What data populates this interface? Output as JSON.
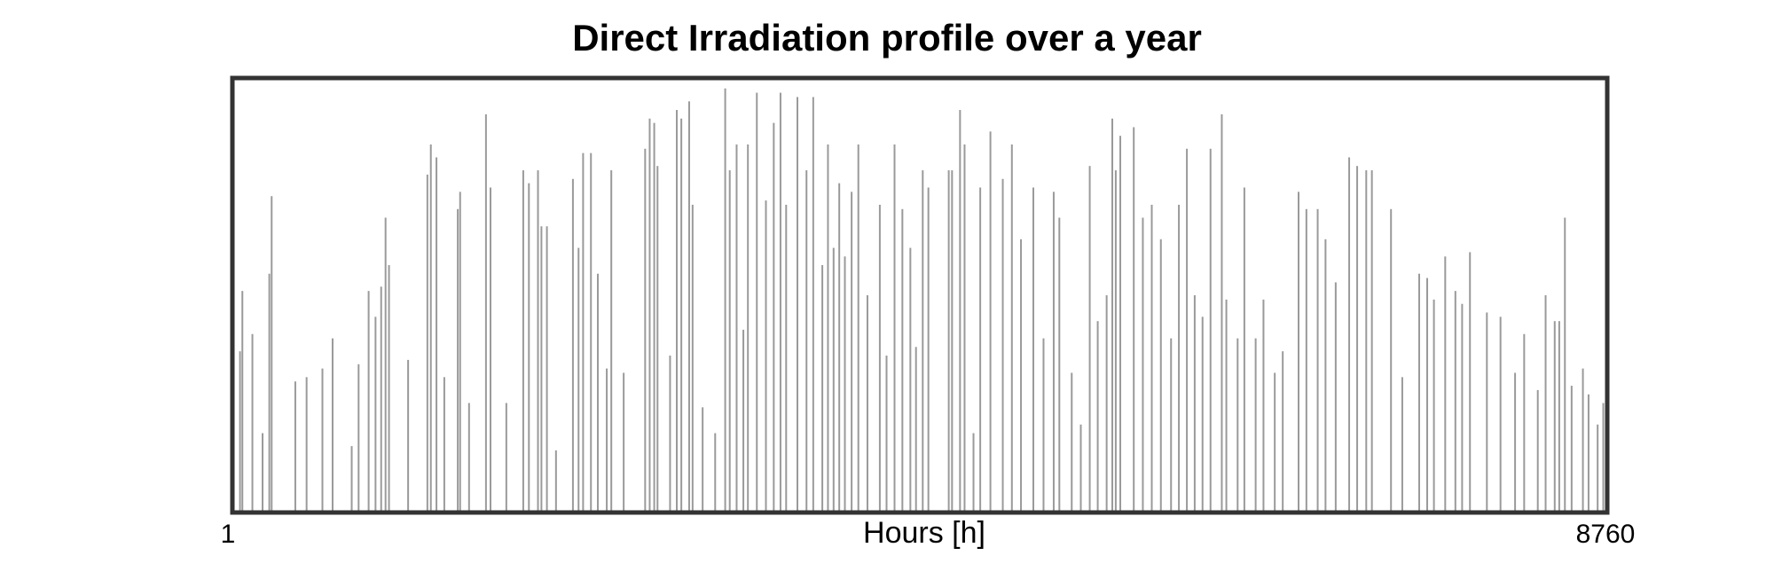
{
  "chart_data": {
    "type": "bar",
    "title": "Direct Irradiation profile over a year",
    "xlabel": "Hours [h]",
    "x": [
      44,
      59,
      123,
      188,
      231,
      246,
      397,
      469,
      570,
      635,
      757,
      801,
      865,
      909,
      945,
      973,
      995,
      1117,
      1240,
      1262,
      1298,
      1348,
      1434,
      1449,
      1506,
      1614,
      1643,
      1744,
      1852,
      1888,
      1946,
      1968,
      2003,
      2061,
      2169,
      2205,
      2234,
      2284,
      2328,
      2385,
      2414,
      2493,
      2630,
      2659,
      2688,
      2709,
      2789,
      2832,
      2861,
      2911,
      2933,
      2997,
      3077,
      3141,
      3170,
      3214,
      3257,
      3286,
      3343,
      3401,
      3451,
      3494,
      3530,
      3602,
      3660,
      3703,
      3761,
      3797,
      3833,
      3869,
      3905,
      3948,
      3991,
      4049,
      4128,
      4171,
      4222,
      4272,
      4323,
      4359,
      4402,
      4438,
      4568,
      4589,
      4640,
      4669,
      4726,
      4769,
      4834,
      4913,
      4971,
      5029,
      5108,
      5173,
      5238,
      5274,
      5353,
      5411,
      5468,
      5519,
      5576,
      5612,
      5634,
      5663,
      5749,
      5807,
      5864,
      5922,
      5987,
      6037,
      6088,
      6138,
      6188,
      6239,
      6311,
      6340,
      6412,
      6455,
      6527,
      6577,
      6649,
      6700,
      6801,
      6851,
      6923,
      6973,
      7038,
      7124,
      7175,
      7233,
      7269,
      7391,
      7463,
      7571,
      7622,
      7665,
      7737,
      7802,
      7845,
      7895,
      8003,
      8090,
      8183,
      8241,
      8328,
      8378,
      8436,
      8465,
      8501,
      8544,
      8616,
      8652,
      8710,
      8746
    ],
    "values": [
      37,
      51,
      41,
      18,
      55,
      73,
      30,
      31,
      33,
      40,
      15,
      34,
      51,
      45,
      52,
      68,
      57,
      35,
      78,
      85,
      82,
      31,
      70,
      74,
      25,
      92,
      75,
      25,
      79,
      76,
      79,
      66,
      66,
      14,
      77,
      61,
      83,
      83,
      55,
      33,
      79,
      32,
      84,
      91,
      90,
      80,
      36,
      93,
      91,
      95,
      71,
      24,
      18,
      98,
      79,
      85,
      42,
      85,
      97,
      72,
      90,
      97,
      71,
      96,
      79,
      96,
      57,
      85,
      61,
      76,
      59,
      74,
      85,
      50,
      71,
      36,
      85,
      70,
      61,
      38,
      79,
      75,
      79,
      79,
      93,
      85,
      18,
      75,
      88,
      77,
      85,
      63,
      75,
      40,
      74,
      68,
      32,
      20,
      80,
      44,
      50,
      91,
      79,
      87,
      89,
      68,
      71,
      63,
      40,
      71,
      84,
      50,
      45,
      84,
      92,
      49,
      40,
      75,
      40,
      49,
      32,
      37,
      74,
      70,
      70,
      63,
      53,
      82,
      80,
      79,
      79,
      70,
      31,
      55,
      54,
      49,
      59,
      51,
      48,
      60,
      46,
      45,
      32,
      41,
      28,
      50,
      44,
      44,
      68,
      29,
      33,
      27,
      20,
      25
    ],
    "color": "#9a9a9a",
    "xlim": [
      1,
      8760
    ],
    "xticks": [
      1,
      8760
    ],
    "ylim": [
      0,
      100
    ],
    "grid": false
  }
}
